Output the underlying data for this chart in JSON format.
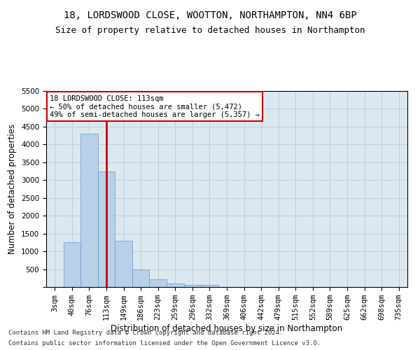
{
  "title": "18, LORDSWOOD CLOSE, WOOTTON, NORTHAMPTON, NN4 6BP",
  "subtitle": "Size of property relative to detached houses in Northampton",
  "xlabel": "Distribution of detached houses by size in Northampton",
  "ylabel": "Number of detached properties",
  "footer_line1": "Contains HM Land Registry data © Crown copyright and database right 2024.",
  "footer_line2": "Contains public sector information licensed under the Open Government Licence v3.0.",
  "categories": [
    "3sqm",
    "40sqm",
    "76sqm",
    "113sqm",
    "149sqm",
    "186sqm",
    "223sqm",
    "259sqm",
    "296sqm",
    "332sqm",
    "369sqm",
    "406sqm",
    "442sqm",
    "479sqm",
    "515sqm",
    "552sqm",
    "589sqm",
    "625sqm",
    "662sqm",
    "698sqm",
    "735sqm"
  ],
  "values": [
    0,
    1250,
    4300,
    3250,
    1300,
    500,
    220,
    100,
    65,
    55,
    0,
    0,
    0,
    0,
    0,
    0,
    0,
    0,
    0,
    0,
    0
  ],
  "bar_color": "#b8d0e8",
  "bar_edge_color": "#6699cc",
  "vline_x_index": 3,
  "vline_color": "#cc0000",
  "annotation_line1": "18 LORDSWOOD CLOSE: 113sqm",
  "annotation_line2": "← 50% of detached houses are smaller (5,472)",
  "annotation_line3": "49% of semi-detached houses are larger (5,357) →",
  "annotation_box_color": "#ffffff",
  "annotation_box_edge": "#cc0000",
  "ylim": [
    0,
    5500
  ],
  "yticks": [
    0,
    500,
    1000,
    1500,
    2000,
    2500,
    3000,
    3500,
    4000,
    4500,
    5000,
    5500
  ],
  "bg_color": "#ffffff",
  "plot_bg_color": "#dce8f0",
  "grid_color": "#b0c4d8",
  "title_fontsize": 10,
  "subtitle_fontsize": 9,
  "axis_label_fontsize": 8.5,
  "tick_fontsize": 7.5,
  "footer_fontsize": 6.5
}
